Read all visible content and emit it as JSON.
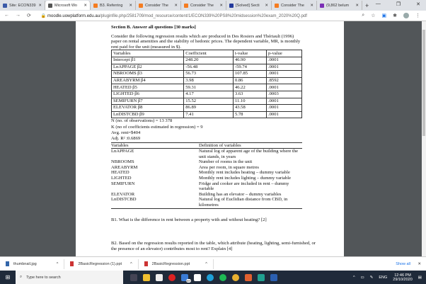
{
  "browser": {
    "tabs": [
      {
        "label": "Site: ECON339",
        "color": "#3b5aa8"
      },
      {
        "label": "Microsoft Wo",
        "color": "#555",
        "active": true
      },
      {
        "label": "B3. Referring",
        "color": "#f57c20"
      },
      {
        "label": "Consider The",
        "color": "#f57c20"
      },
      {
        "label": "Consider The",
        "color": "#f57c20"
      },
      {
        "label": "[Solved] Secti",
        "color": "#233a9c"
      },
      {
        "label": "Consider The",
        "color": "#f57c20"
      },
      {
        "label": "(9,862 belum",
        "color": "#7b2fb5"
      }
    ],
    "url_host": "moodle.uowplatform.edu.au",
    "url_path": "/pluginfile.php/2581709/mod_resource/content/1/ECON339%20PS8%20midsession%20exam_2020%20Q.pdf"
  },
  "doc": {
    "section_title": "Section B. Answer all questions [30 marks]",
    "intro": "Consider the following regression results which are produced in Des Rosiers and Thériault (1996) paper on rental amenities and the stability of hedonic prices. The dependent variable, MR, is monthly rent paid for the unit (measured in $).",
    "reg_headers": [
      "Variables",
      "Coefficient",
      "t-value",
      "p-value"
    ],
    "reg_rows": [
      [
        "Intercept β1",
        "248.20",
        "46.90",
        ".0001"
      ],
      [
        "LnAPPAGE β2",
        "-56.48",
        "-59.74",
        ".0001"
      ],
      [
        "NBROOMS β3",
        "56.73",
        "107.85",
        ".0001"
      ],
      [
        "AREABYRM β4",
        "3.98",
        "0.86",
        ".8592"
      ],
      [
        "HEATED β5",
        "59.31",
        "46.22",
        ".0001"
      ],
      [
        "LIGHTED β6",
        "4.17",
        "3.63",
        ".0003"
      ],
      [
        "SEMIFURN β7",
        "15.52",
        "11.10",
        ".0001"
      ],
      [
        "ELEVATOR β8",
        "86.89",
        "43.58",
        ".0001"
      ],
      [
        "LnDISTCBD β9",
        "7.41",
        "5.78",
        ".0001"
      ]
    ],
    "stats": [
      "N (no. of observations) = 13 378",
      "K (no of coefficients estimated in regression) = 9",
      "Avg. rent=$404",
      "Adj. R² :0.6869"
    ],
    "def_headers": [
      "Variables",
      "Definition of variables"
    ],
    "def_rows": [
      [
        "LnAPPAGE",
        "Natural log of apparent age of the building where the unit stands, in years"
      ],
      [
        "NBROOMS",
        "Number of rooms in the unit"
      ],
      [
        "AREABYRM",
        "Area per room, in square metres"
      ],
      [
        "HEATED",
        "Monthly rent includes heating – dummy variable"
      ],
      [
        "LIGHTED",
        "Monthly rent includes lighting – dummy variable"
      ],
      [
        "SEMIFURN",
        "Fridge and cooker are included in rent – dummy variable"
      ],
      [
        "ELEVATOR",
        "Building has an elevator – dummy variables"
      ],
      [
        "LnDISTCBD",
        "Natural log of Euclidian distance from CBD, in kilometres"
      ]
    ],
    "b1": "B1. What is the difference in rent between a property with and without heating? [2]",
    "b2": "B2. Based on the regression results reported in the table, which attribute (heating, lighting, semi-furnished, or the presence of an elevator) contributes most to rent? Explain [4]"
  },
  "downloads": {
    "items": [
      "thumbnail.jpg",
      "2BasicRegression (1).ppt",
      "2BasicRegression.ppt"
    ],
    "show_all": "Show all"
  },
  "taskbar": {
    "search_placeholder": "Type here to search",
    "badge": "99+",
    "lang": "ENG",
    "time": "12:46 PM",
    "date": "29/10/2020"
  }
}
